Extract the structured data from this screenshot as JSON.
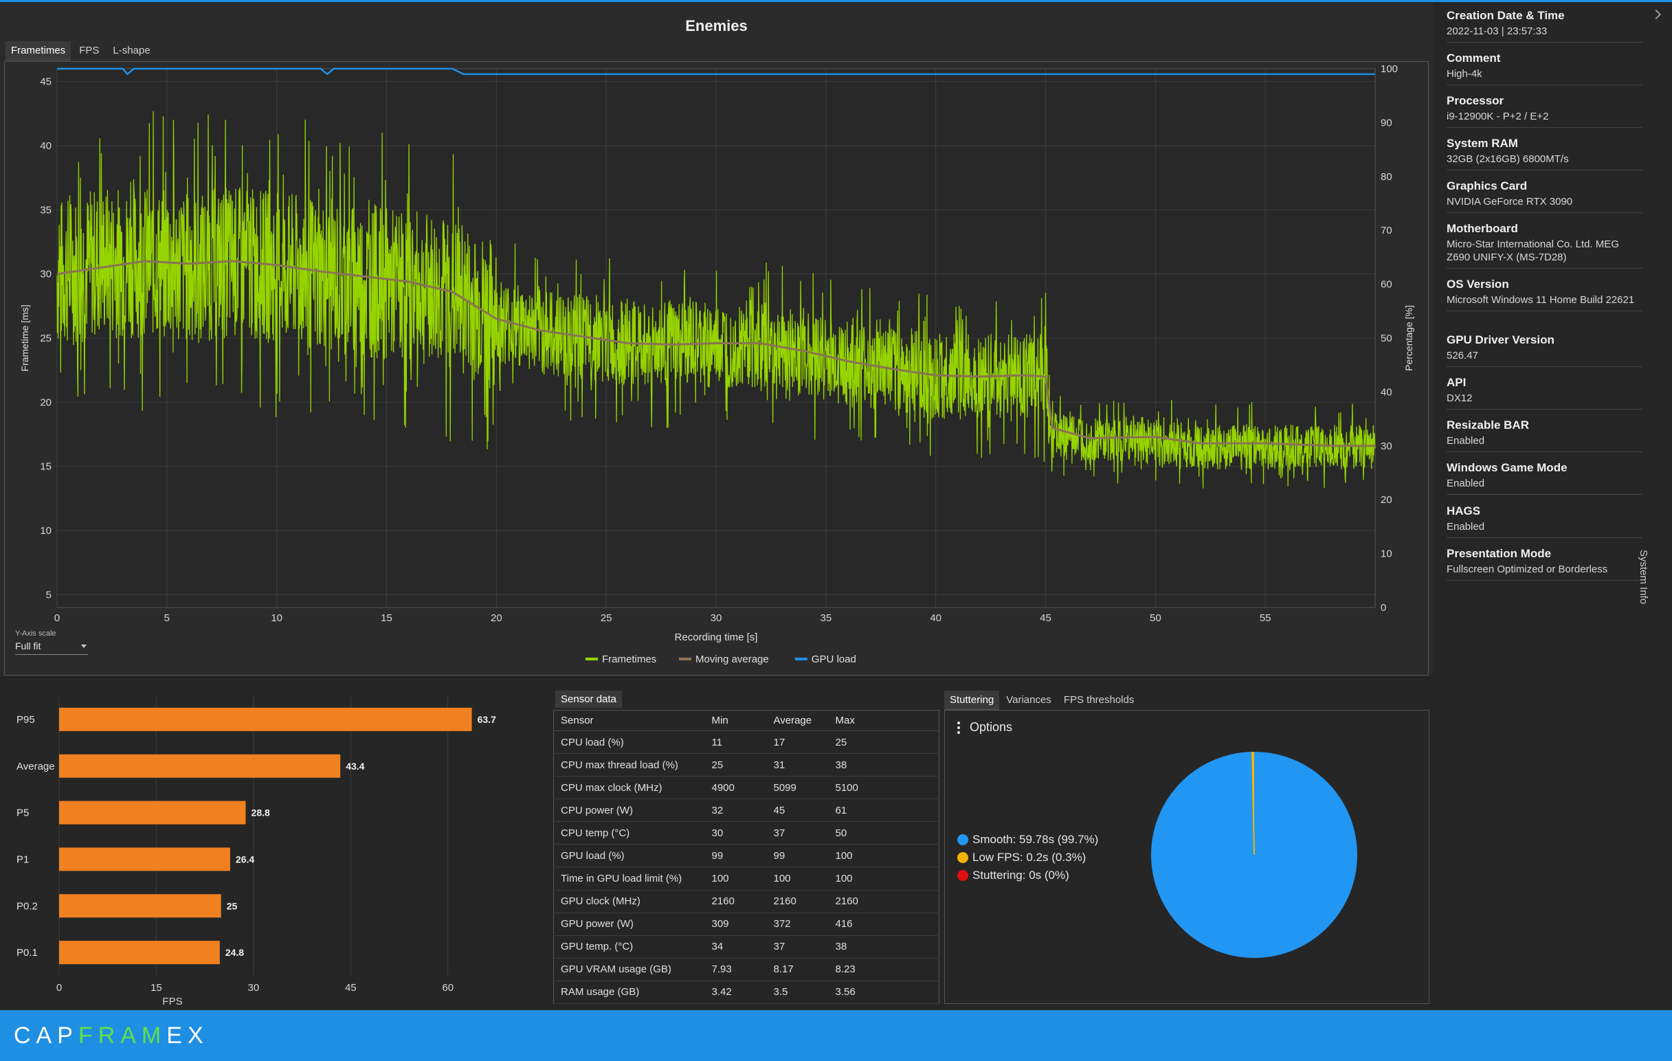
{
  "chart": {
    "title": "Enemies",
    "tabs": [
      "Frametimes",
      "FPS",
      "L-shape"
    ],
    "active_tab": "Frametimes",
    "y_scale_label": "Y-Axis scale",
    "y_scale_value": "Full fit"
  },
  "chart_data": [
    {
      "type": "line",
      "title": "Enemies",
      "xlabel": "Recording time [s]",
      "ylabel": "Frametime [ms]",
      "y2label": "Percentage [%]",
      "xlim": [
        0,
        60
      ],
      "ylim": [
        4,
        46
      ],
      "y2lim": [
        0,
        100
      ],
      "x_ticks": [
        0,
        5,
        10,
        15,
        20,
        25,
        30,
        35,
        40,
        45,
        50,
        55
      ],
      "y_ticks": [
        5,
        10,
        15,
        20,
        25,
        30,
        35,
        40,
        45
      ],
      "y2_ticks": [
        0,
        10,
        20,
        30,
        40,
        50,
        60,
        70,
        80,
        90,
        100
      ],
      "grid": true,
      "legend_position": "bottom-center",
      "series": [
        {
          "name": "Frametimes",
          "color": "#96d400",
          "x": [
            0,
            2,
            4,
            6,
            8,
            10,
            12,
            14,
            16,
            18,
            20,
            22,
            24,
            26,
            28,
            30,
            32,
            34,
            36,
            38,
            40,
            42,
            44,
            45,
            45.3,
            47,
            50,
            52,
            55,
            58,
            60
          ],
          "y": [
            30,
            31,
            31,
            30.5,
            31,
            30.5,
            30,
            29.5,
            29,
            28.5,
            26.5,
            25.5,
            25,
            24.5,
            24.5,
            24.5,
            24.5,
            24,
            23,
            22.5,
            22,
            22,
            22,
            22,
            17.5,
            17,
            17,
            16.5,
            16.5,
            16.5,
            16.5
          ]
        },
        {
          "name": "Moving average",
          "color": "#8b7355",
          "x": [
            0,
            2,
            4,
            6,
            8,
            10,
            12,
            14,
            16,
            18,
            20,
            22,
            24,
            26,
            28,
            30,
            32,
            34,
            36,
            38,
            40,
            42,
            44,
            45,
            45.3,
            47,
            50,
            52,
            55,
            58,
            60
          ],
          "y": [
            30,
            30.5,
            31,
            30.8,
            31,
            30.7,
            30.2,
            29.8,
            29.4,
            28.6,
            26.5,
            25.6,
            25.1,
            24.6,
            24.5,
            24.6,
            24.6,
            24,
            23.2,
            22.6,
            22.1,
            22,
            22.1,
            22,
            18,
            17.2,
            17.3,
            16.8,
            16.8,
            16.6,
            16.6
          ]
        },
        {
          "name": "GPU load",
          "color": "#1f8fe3",
          "axis": "y2",
          "x": [
            0,
            3,
            3.2,
            3.5,
            12,
            12.3,
            12.6,
            18,
            18.5,
            19,
            20,
            21,
            22,
            23,
            24,
            25,
            26,
            27,
            28,
            60
          ],
          "y": [
            100,
            100,
            99,
            100,
            100,
            99,
            100,
            100,
            99,
            99,
            99,
            99,
            99,
            99,
            99,
            99,
            99,
            99,
            99,
            99
          ]
        }
      ]
    },
    {
      "type": "bar",
      "orientation": "horizontal",
      "xlabel": "FPS",
      "categories": [
        "P95",
        "Average",
        "P5",
        "P1",
        "P0.2",
        "P0.1"
      ],
      "values": [
        63.7,
        43.4,
        28.8,
        26.4,
        25,
        24.8
      ],
      "xlim": [
        0,
        70
      ],
      "x_ticks": [
        0,
        15,
        30,
        45,
        60
      ],
      "color": "#f08020"
    },
    {
      "type": "pie",
      "categories": [
        "Smooth",
        "Low FPS",
        "Stuttering"
      ],
      "values": [
        99.7,
        0.3,
        0
      ],
      "colors": [
        "#2196f3",
        "#f5b400",
        "#e01010"
      ]
    }
  ],
  "bar_chart": {
    "labels": [
      "63.7",
      "43.4",
      "28.8",
      "26.4",
      "25",
      "24.8"
    ]
  },
  "sensor": {
    "tab": "Sensor data",
    "headers": [
      "Sensor",
      "Min",
      "Average",
      "Max"
    ],
    "rows": [
      [
        "CPU load (%)",
        "11",
        "17",
        "25"
      ],
      [
        "CPU max thread load (%)",
        "25",
        "31",
        "38"
      ],
      [
        "CPU max clock (MHz)",
        "4900",
        "5099",
        "5100"
      ],
      [
        "CPU power (W)",
        "32",
        "45",
        "61"
      ],
      [
        "CPU temp (°C)",
        "30",
        "37",
        "50"
      ],
      [
        "GPU load (%)",
        "99",
        "99",
        "100"
      ],
      [
        "Time in GPU load limit (%)",
        "100",
        "100",
        "100"
      ],
      [
        "GPU clock (MHz)",
        "2160",
        "2160",
        "2160"
      ],
      [
        "GPU power (W)",
        "309",
        "372",
        "416"
      ],
      [
        "GPU temp. (°C)",
        "34",
        "37",
        "38"
      ],
      [
        "GPU VRAM usage (GB)",
        "7.93",
        "8.17",
        "8.23"
      ],
      [
        "RAM usage (GB)",
        "3.42",
        "3.5",
        "3.56"
      ]
    ]
  },
  "stutter": {
    "tabs": [
      "Stuttering",
      "Variances",
      "FPS thresholds"
    ],
    "active_tab": "Stuttering",
    "options_label": "Options",
    "legend": [
      {
        "label": "Smooth:  59.78s (99.7%)",
        "color": "#2196f3"
      },
      {
        "label": "Low FPS:  0.2s (0.3%)",
        "color": "#f5b400"
      },
      {
        "label": "Stuttering:  0s (0%)",
        "color": "#e01010"
      }
    ]
  },
  "sysinfo": {
    "vertical_label": "System Info",
    "items": [
      {
        "label": "Creation Date & Time",
        "value": "2022-11-03  |  23:57:33"
      },
      {
        "label": "Comment",
        "value": "High-4k"
      },
      {
        "label": "Processor",
        "value": "i9-12900K - P+2 / E+2"
      },
      {
        "label": "System RAM",
        "value": "32GB (2x16GB) 6800MT/s"
      },
      {
        "label": "Graphics Card",
        "value": "NVIDIA GeForce RTX 3090"
      },
      {
        "label": "Motherboard",
        "value": "Micro-Star International Co. Ltd. MEG Z690 UNIFY-X (MS-7D28)"
      },
      {
        "label": "OS Version",
        "value": "Microsoft Windows 11 Home Build 22621"
      },
      {
        "label": "GPU Driver Version",
        "value": "526.47"
      },
      {
        "label": "API",
        "value": "DX12"
      },
      {
        "label": "Resizable BAR",
        "value": "Enabled"
      },
      {
        "label": "Windows Game Mode",
        "value": "Enabled"
      },
      {
        "label": "HAGS",
        "value": "Enabled"
      },
      {
        "label": "Presentation Mode",
        "value": "Fullscreen Optimized or Borderless"
      }
    ]
  },
  "footer": {
    "logo_parts": [
      "CAP",
      "FRAM",
      "E",
      "X"
    ]
  }
}
